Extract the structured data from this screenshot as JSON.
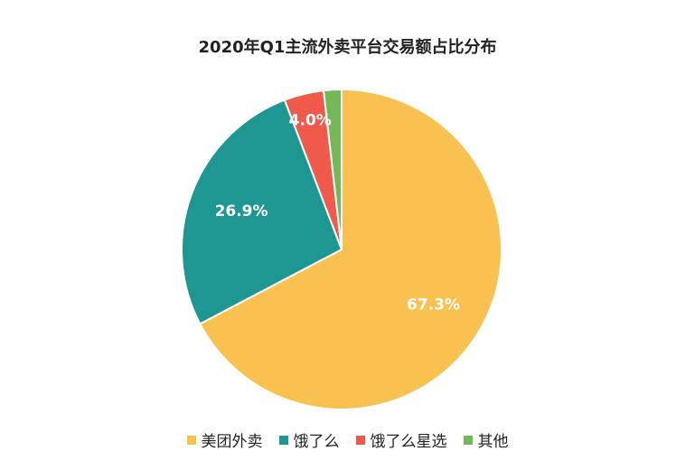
{
  "chart_data": {
    "type": "pie",
    "title": "2020年Q1主流外卖平台交易额占比分布",
    "unit": "%",
    "slices": [
      {
        "name": "美团外卖",
        "value": 67.3,
        "label": "67.3%",
        "color": "#F8C150"
      },
      {
        "name": "饿了么",
        "value": 26.9,
        "label": "26.9%",
        "color": "#1E9691"
      },
      {
        "name": "饿了么星选",
        "value": 4.0,
        "label": "4.0%",
        "color": "#F05A4B"
      },
      {
        "name": "其他",
        "value": 1.8,
        "label": "",
        "color": "#74B85A"
      }
    ],
    "legend_position": "bottom"
  }
}
